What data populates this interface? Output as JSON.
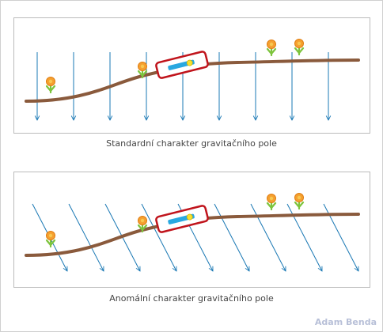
{
  "captions": {
    "standard": "Standardní charakter gravitačního pole",
    "anomalous": "Anomální charakter gravitačního pole"
  },
  "author": "Adam Benda"
}
